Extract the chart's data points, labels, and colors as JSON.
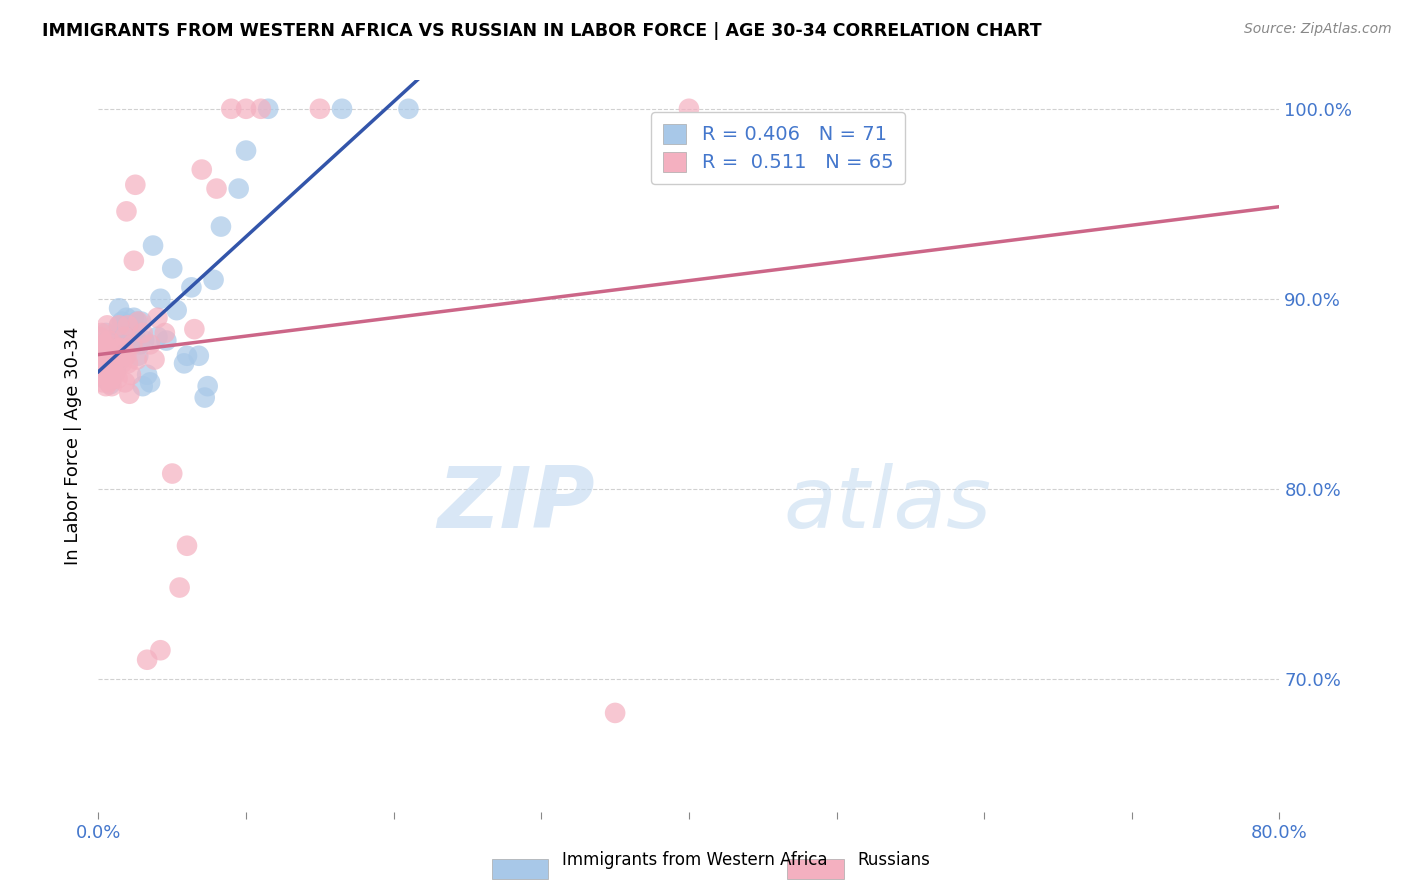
{
  "title": "IMMIGRANTS FROM WESTERN AFRICA VS RUSSIAN IN LABOR FORCE | AGE 30-34 CORRELATION CHART",
  "source": "Source: ZipAtlas.com",
  "ylabel": "In Labor Force | Age 30-34",
  "x_min": 0.0,
  "x_max": 0.8,
  "y_min": 0.63,
  "y_max": 1.015,
  "x_ticks": [
    0.0,
    0.1,
    0.2,
    0.3,
    0.4,
    0.5,
    0.6,
    0.7,
    0.8
  ],
  "x_tick_labels": [
    "0.0%",
    "",
    "",
    "",
    "",
    "",
    "",
    "",
    "80.0%"
  ],
  "y_ticks": [
    0.7,
    0.8,
    0.9,
    1.0
  ],
  "y_tick_labels": [
    "70.0%",
    "80.0%",
    "90.0%",
    "100.0%"
  ],
  "blue_R": 0.406,
  "blue_N": 71,
  "pink_R": 0.511,
  "pink_N": 65,
  "blue_color": "#a8c8e8",
  "pink_color": "#f4b0c0",
  "line_blue": "#3355aa",
  "line_pink": "#cc6688",
  "legend_color": "#4477cc",
  "watermark_zip": "ZIP",
  "watermark_atlas": "atlas",
  "blue_points": [
    [
      0.001,
      0.868
    ],
    [
      0.002,
      0.872
    ],
    [
      0.003,
      0.862
    ],
    [
      0.003,
      0.875
    ],
    [
      0.004,
      0.858
    ],
    [
      0.004,
      0.868
    ],
    [
      0.005,
      0.862
    ],
    [
      0.005,
      0.872
    ],
    [
      0.005,
      0.882
    ],
    [
      0.006,
      0.86
    ],
    [
      0.006,
      0.868
    ],
    [
      0.006,
      0.876
    ],
    [
      0.007,
      0.858
    ],
    [
      0.007,
      0.868
    ],
    [
      0.007,
      0.878
    ],
    [
      0.008,
      0.855
    ],
    [
      0.008,
      0.866
    ],
    [
      0.008,
      0.878
    ],
    [
      0.009,
      0.858
    ],
    [
      0.009,
      0.868
    ],
    [
      0.009,
      0.876
    ],
    [
      0.01,
      0.868
    ],
    [
      0.01,
      0.876
    ],
    [
      0.011,
      0.863
    ],
    [
      0.011,
      0.872
    ],
    [
      0.012,
      0.862
    ],
    [
      0.012,
      0.87
    ],
    [
      0.013,
      0.868
    ],
    [
      0.014,
      0.886
    ],
    [
      0.014,
      0.895
    ],
    [
      0.015,
      0.868
    ],
    [
      0.015,
      0.878
    ],
    [
      0.016,
      0.876
    ],
    [
      0.016,
      0.888
    ],
    [
      0.017,
      0.876
    ],
    [
      0.018,
      0.884
    ],
    [
      0.019,
      0.89
    ],
    [
      0.02,
      0.878
    ],
    [
      0.021,
      0.875
    ],
    [
      0.022,
      0.882
    ],
    [
      0.022,
      0.876
    ],
    [
      0.023,
      0.882
    ],
    [
      0.024,
      0.89
    ],
    [
      0.025,
      0.88
    ],
    [
      0.026,
      0.888
    ],
    [
      0.027,
      0.87
    ],
    [
      0.028,
      0.876
    ],
    [
      0.029,
      0.888
    ],
    [
      0.03,
      0.854
    ],
    [
      0.031,
      0.878
    ],
    [
      0.033,
      0.86
    ],
    [
      0.035,
      0.856
    ],
    [
      0.037,
      0.928
    ],
    [
      0.04,
      0.88
    ],
    [
      0.042,
      0.9
    ],
    [
      0.046,
      0.878
    ],
    [
      0.05,
      0.916
    ],
    [
      0.053,
      0.894
    ],
    [
      0.058,
      0.866
    ],
    [
      0.06,
      0.87
    ],
    [
      0.063,
      0.906
    ],
    [
      0.068,
      0.87
    ],
    [
      0.072,
      0.848
    ],
    [
      0.074,
      0.854
    ],
    [
      0.078,
      0.91
    ],
    [
      0.083,
      0.938
    ],
    [
      0.095,
      0.958
    ],
    [
      0.1,
      0.978
    ],
    [
      0.115,
      1.0
    ],
    [
      0.165,
      1.0
    ],
    [
      0.21,
      1.0
    ]
  ],
  "pink_points": [
    [
      0.001,
      0.87
    ],
    [
      0.001,
      0.88
    ],
    [
      0.002,
      0.86
    ],
    [
      0.002,
      0.87
    ],
    [
      0.002,
      0.882
    ],
    [
      0.003,
      0.856
    ],
    [
      0.003,
      0.866
    ],
    [
      0.003,
      0.876
    ],
    [
      0.004,
      0.86
    ],
    [
      0.004,
      0.872
    ],
    [
      0.005,
      0.854
    ],
    [
      0.005,
      0.866
    ],
    [
      0.005,
      0.876
    ],
    [
      0.006,
      0.864
    ],
    [
      0.006,
      0.874
    ],
    [
      0.006,
      0.886
    ],
    [
      0.007,
      0.856
    ],
    [
      0.007,
      0.868
    ],
    [
      0.007,
      0.878
    ],
    [
      0.008,
      0.858
    ],
    [
      0.008,
      0.87
    ],
    [
      0.009,
      0.854
    ],
    [
      0.009,
      0.862
    ],
    [
      0.01,
      0.866
    ],
    [
      0.01,
      0.876
    ],
    [
      0.011,
      0.86
    ],
    [
      0.012,
      0.868
    ],
    [
      0.013,
      0.858
    ],
    [
      0.014,
      0.874
    ],
    [
      0.014,
      0.886
    ],
    [
      0.015,
      0.868
    ],
    [
      0.016,
      0.866
    ],
    [
      0.017,
      0.874
    ],
    [
      0.018,
      0.856
    ],
    [
      0.018,
      0.88
    ],
    [
      0.019,
      0.946
    ],
    [
      0.019,
      0.87
    ],
    [
      0.02,
      0.886
    ],
    [
      0.02,
      0.866
    ],
    [
      0.021,
      0.85
    ],
    [
      0.022,
      0.86
    ],
    [
      0.023,
      0.876
    ],
    [
      0.024,
      0.92
    ],
    [
      0.025,
      0.96
    ],
    [
      0.026,
      0.868
    ],
    [
      0.027,
      0.888
    ],
    [
      0.03,
      0.882
    ],
    [
      0.033,
      0.71
    ],
    [
      0.035,
      0.876
    ],
    [
      0.038,
      0.868
    ],
    [
      0.04,
      0.89
    ],
    [
      0.042,
      0.715
    ],
    [
      0.045,
      0.882
    ],
    [
      0.05,
      0.808
    ],
    [
      0.055,
      0.748
    ],
    [
      0.06,
      0.77
    ],
    [
      0.065,
      0.884
    ],
    [
      0.07,
      0.968
    ],
    [
      0.08,
      0.958
    ],
    [
      0.09,
      1.0
    ],
    [
      0.1,
      1.0
    ],
    [
      0.11,
      1.0
    ],
    [
      0.15,
      1.0
    ],
    [
      0.35,
      0.682
    ],
    [
      0.4,
      1.0
    ]
  ]
}
